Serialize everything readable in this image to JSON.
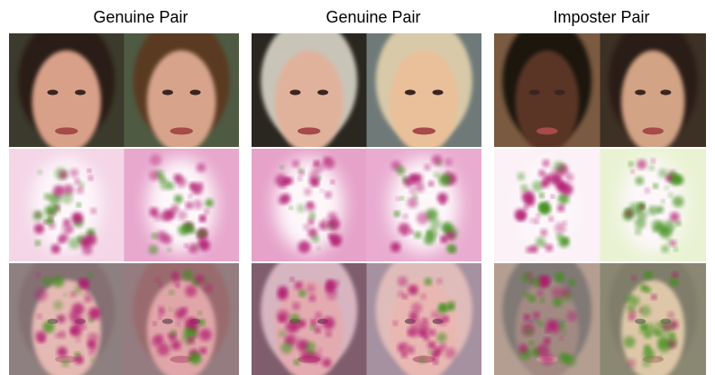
{
  "panels": [
    {
      "title": "Genuine Pair"
    },
    {
      "title": "Genuine Pair"
    },
    {
      "title": "Imposter Pair"
    }
  ]
}
